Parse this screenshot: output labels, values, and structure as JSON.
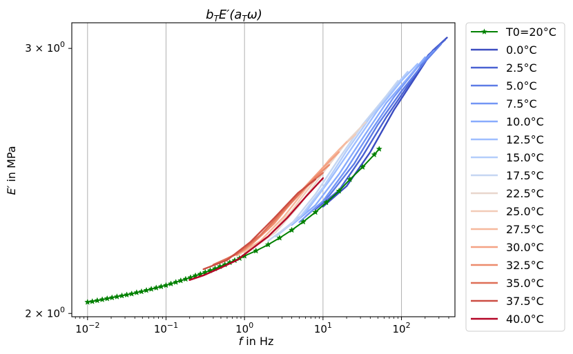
{
  "chart_data": {
    "type": "line",
    "title": "b_TE′(a_Tω)",
    "title_parts": {
      "b": "b",
      "b_sub": "T",
      "E": "E′(",
      "a": "a",
      "a_sub": "T",
      "omega": "ω)"
    },
    "xlabel": "f in Hz",
    "xlabel_parts": {
      "var": "f",
      "rest": " in Hz"
    },
    "ylabel": "E′ in MPa",
    "ylabel_parts": {
      "var": "E′",
      "rest": " in MPa"
    },
    "x_scale": "log",
    "y_scale": "log",
    "xlim": [
      0.0063,
      480
    ],
    "ylim": [
      1.99,
      3.12
    ],
    "x_ticks": [
      {
        "value": 0.01,
        "base": "10",
        "exp": "−2"
      },
      {
        "value": 0.1,
        "base": "10",
        "exp": "−1"
      },
      {
        "value": 1,
        "base": "10",
        "exp": "0"
      },
      {
        "value": 10,
        "base": "10",
        "exp": "1"
      },
      {
        "value": 100,
        "base": "10",
        "exp": "2"
      }
    ],
    "y_ticks": [
      {
        "value": 2.0,
        "base": "2 × 10",
        "exp": "0"
      },
      {
        "value": 3.0,
        "base": "3 × 10",
        "exp": "0"
      }
    ],
    "grid": "vertical major",
    "legend_position": "outside right",
    "reference": {
      "name": "T0=20°C",
      "color": "#008000",
      "marker": "star",
      "x": [
        0.01,
        0.0115,
        0.0133,
        0.0154,
        0.0178,
        0.0205,
        0.0237,
        0.0274,
        0.0316,
        0.0365,
        0.0422,
        0.0487,
        0.0562,
        0.0649,
        0.075,
        0.0866,
        0.1,
        0.1155,
        0.1334,
        0.154,
        0.1778,
        0.2054,
        0.2371,
        0.2738,
        0.3162,
        0.3652,
        0.4217,
        0.487,
        0.5623,
        0.6494,
        0.75,
        0.866,
        1.0,
        1.4,
        2.0,
        2.8,
        4.0,
        5.6,
        8.0,
        11.0,
        16.0,
        22.0,
        32.0,
        45.0,
        52.0
      ],
      "y": [
        2.035,
        2.037,
        2.04,
        2.043,
        2.046,
        2.049,
        2.052,
        2.055,
        2.058,
        2.061,
        2.065,
        2.068,
        2.072,
        2.076,
        2.08,
        2.084,
        2.088,
        2.093,
        2.098,
        2.103,
        2.108,
        2.113,
        2.119,
        2.124,
        2.13,
        2.136,
        2.142,
        2.149,
        2.155,
        2.162,
        2.169,
        2.176,
        2.184,
        2.201,
        2.222,
        2.245,
        2.272,
        2.301,
        2.335,
        2.37,
        2.412,
        2.455,
        2.502,
        2.55,
        2.572
      ]
    },
    "series": [
      {
        "name": "0.0°C",
        "color": "#3b4cc0",
        "x": [
          10,
          20,
          40,
          80,
          150,
          250,
          380
        ],
        "y": [
          2.355,
          2.43,
          2.56,
          2.73,
          2.87,
          2.99,
          3.05
        ]
      },
      {
        "name": "2.5°C",
        "color": "#4961d2",
        "x": [
          8,
          16,
          32,
          64,
          130,
          220,
          360
        ],
        "y": [
          2.345,
          2.415,
          2.545,
          2.7,
          2.85,
          2.97,
          3.04
        ]
      },
      {
        "name": "5.0°C",
        "color": "#5d7ce6",
        "x": [
          6,
          12,
          25,
          50,
          100,
          200,
          320
        ],
        "y": [
          2.32,
          2.395,
          2.515,
          2.67,
          2.81,
          2.94,
          3.02
        ]
      },
      {
        "name": "7.5°C",
        "color": "#7396f5",
        "x": [
          5,
          10,
          20,
          40,
          80,
          160,
          260
        ],
        "y": [
          2.3,
          2.375,
          2.495,
          2.64,
          2.785,
          2.915,
          2.99
        ]
      },
      {
        "name": "10.0°C",
        "color": "#88abfd",
        "x": [
          4,
          8,
          16,
          32,
          64,
          130,
          200
        ],
        "y": [
          2.29,
          2.36,
          2.475,
          2.615,
          2.76,
          2.88,
          2.96
        ]
      },
      {
        "name": "12.5°C",
        "color": "#9ebeff",
        "x": [
          3,
          6,
          12,
          25,
          50,
          100,
          160
        ],
        "y": [
          2.27,
          2.335,
          2.45,
          2.59,
          2.73,
          2.855,
          2.93
        ]
      },
      {
        "name": "15.0°C",
        "color": "#b3cdfb",
        "x": [
          2.5,
          5,
          10,
          20,
          40,
          80,
          120
        ],
        "y": [
          2.25,
          2.315,
          2.425,
          2.565,
          2.7,
          2.825,
          2.895
        ]
      },
      {
        "name": "17.5°C",
        "color": "#c5d6f2",
        "x": [
          2,
          4,
          8,
          16,
          32,
          64,
          90
        ],
        "y": [
          2.235,
          2.295,
          2.4,
          2.535,
          2.67,
          2.79,
          2.855
        ]
      },
      {
        "name": "22.5°C",
        "color": "#e8d6cc",
        "x": [
          1.2,
          2.5,
          5,
          10,
          20,
          35
        ],
        "y": [
          2.205,
          2.265,
          2.36,
          2.48,
          2.6,
          2.68
        ]
      },
      {
        "name": "25.0°C",
        "color": "#f2cbb7",
        "x": [
          1.0,
          2,
          4,
          8,
          16,
          26
        ],
        "y": [
          2.195,
          2.25,
          2.34,
          2.455,
          2.57,
          2.63
        ]
      },
      {
        "name": "27.5°C",
        "color": "#f6b89c",
        "x": [
          0.8,
          1.6,
          3.2,
          6.4,
          12,
          20
        ],
        "y": [
          2.185,
          2.235,
          2.32,
          2.43,
          2.53,
          2.6
        ]
      },
      {
        "name": "30.0°C",
        "color": "#f4a183",
        "x": [
          0.6,
          1.2,
          2.4,
          4.8,
          9.6,
          16
        ],
        "y": [
          2.175,
          2.22,
          2.295,
          2.4,
          2.495,
          2.56
        ]
      },
      {
        "name": "32.5°C",
        "color": "#ec8a6b",
        "x": [
          0.5,
          1.0,
          2,
          4,
          8,
          12
        ],
        "y": [
          2.165,
          2.205,
          2.275,
          2.37,
          2.465,
          2.51
        ]
      },
      {
        "name": "35.0°C",
        "color": "#de6e56",
        "x": [
          0.4,
          0.8,
          1.6,
          3.2,
          6.4,
          10
        ],
        "y": [
          2.155,
          2.19,
          2.255,
          2.345,
          2.435,
          2.48
        ]
      },
      {
        "name": "37.5°C",
        "color": "#cc4d42",
        "x": [
          0.3,
          0.6,
          1.2,
          2.4,
          4.8,
          8
        ],
        "y": [
          2.14,
          2.17,
          2.232,
          2.315,
          2.405,
          2.455
        ]
      },
      {
        "name": "40.0°C",
        "color": "#b40426",
        "x": [
          0.2,
          0.3,
          0.5,
          0.8,
          1.2,
          2,
          3.5,
          6,
          10
        ],
        "y": [
          2.105,
          2.12,
          2.145,
          2.17,
          2.205,
          2.25,
          2.315,
          2.39,
          2.46
        ]
      }
    ]
  }
}
